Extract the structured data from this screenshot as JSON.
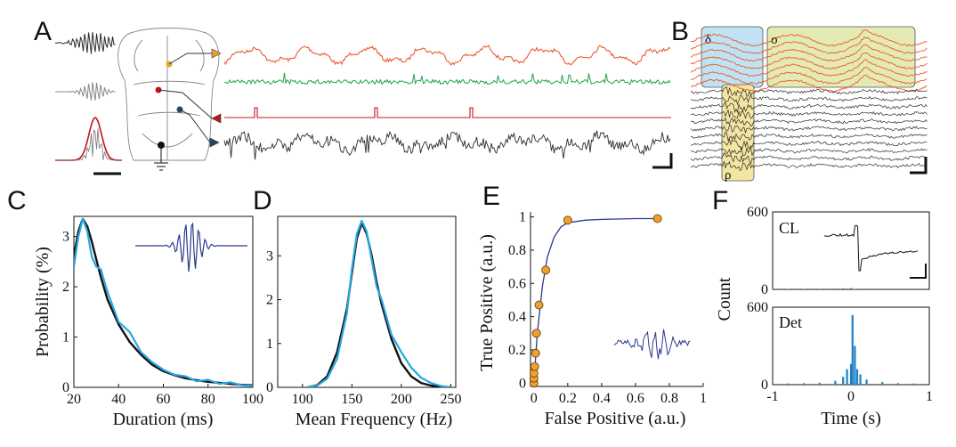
{
  "figure": {
    "panels": [
      "A",
      "B",
      "C",
      "D",
      "E",
      "F"
    ]
  },
  "colors": {
    "orange": "#ee5a2c",
    "green": "#1fa54a",
    "red": "#c0151b",
    "dark": "#2b2b2b",
    "blue_light": "#2aa7e0",
    "navy": "#2b3a8f",
    "marker": "#f0a030",
    "delta_box": "#bfe3f5",
    "sigma_box": "#e3eab4",
    "rho_box": "#f3e6a2",
    "hist": "#1f7fc4"
  },
  "panel_B": {
    "boxes": [
      "δ",
      "σ",
      "ρ"
    ]
  },
  "chart_data": [
    {
      "panel": "C",
      "type": "line",
      "xlabel": "Duration (ms)",
      "ylabel": "Probability (%)",
      "xlim": [
        20,
        100
      ],
      "ylim": [
        0,
        3.4
      ],
      "xticks": [
        "20",
        "40",
        "60",
        "80",
        "100"
      ],
      "yticks": [
        "0",
        "1",
        "2",
        "3"
      ],
      "series": [
        {
          "name": "black",
          "x": [
            20,
            22,
            24,
            26,
            28,
            30,
            32,
            35,
            40,
            45,
            50,
            55,
            60,
            65,
            70,
            75,
            80,
            85,
            90,
            95,
            100
          ],
          "values": [
            2.6,
            3.1,
            3.35,
            3.2,
            2.9,
            2.55,
            2.2,
            1.75,
            1.25,
            0.9,
            0.65,
            0.45,
            0.32,
            0.24,
            0.18,
            0.14,
            0.11,
            0.09,
            0.07,
            0.05,
            0.04
          ]
        },
        {
          "name": "blue",
          "x": [
            20,
            22,
            24,
            26,
            28,
            30,
            32,
            35,
            40,
            45,
            50,
            55,
            60,
            65,
            70,
            75,
            80,
            85,
            90,
            95,
            100
          ],
          "values": [
            2.4,
            3.0,
            3.35,
            3.1,
            2.6,
            2.4,
            2.35,
            1.9,
            1.3,
            1.1,
            0.7,
            0.5,
            0.35,
            0.25,
            0.22,
            0.12,
            0.15,
            0.07,
            0.1,
            0.04,
            0.03
          ]
        }
      ]
    },
    {
      "panel": "D",
      "type": "line",
      "xlabel": "Mean Frequency (Hz)",
      "ylabel": "",
      "xlim": [
        75,
        255
      ],
      "ylim": [
        0,
        3.9
      ],
      "xticks": [
        "100",
        "150",
        "200",
        "250"
      ],
      "yticks": [
        "0",
        "1",
        "2",
        "3"
      ],
      "series": [
        {
          "name": "black",
          "x": [
            105,
            115,
            125,
            135,
            145,
            150,
            155,
            160,
            165,
            170,
            175,
            180,
            190,
            200,
            210,
            220,
            230,
            240,
            250
          ],
          "values": [
            0,
            0.05,
            0.25,
            0.8,
            1.8,
            2.6,
            3.4,
            3.75,
            3.5,
            3.0,
            2.4,
            1.9,
            1.1,
            0.55,
            0.25,
            0.1,
            0.04,
            0.01,
            0
          ]
        },
        {
          "name": "blue",
          "x": [
            105,
            115,
            125,
            135,
            145,
            150,
            155,
            160,
            165,
            170,
            175,
            180,
            190,
            200,
            210,
            220,
            230,
            240,
            250
          ],
          "values": [
            0,
            0.04,
            0.2,
            0.65,
            1.7,
            2.7,
            3.5,
            3.8,
            3.55,
            2.9,
            2.3,
            2.0,
            1.2,
            0.8,
            0.45,
            0.22,
            0.1,
            0.03,
            0
          ]
        }
      ]
    },
    {
      "panel": "E",
      "type": "scatter",
      "xlabel": "False Positive (a.u.)",
      "ylabel": "True Positive (a.u.)",
      "xlim": [
        -0.02,
        1.0
      ],
      "ylim": [
        -0.02,
        1.03
      ],
      "xticks": [
        "0",
        "0.2",
        "0.4",
        "0.6",
        "0.8",
        "1"
      ],
      "yticks": [
        "0",
        "0.2",
        "0.4",
        "0.6",
        "0.8",
        "1"
      ],
      "points": [
        {
          "x": 0.0,
          "y": 0.0
        },
        {
          "x": 0.0,
          "y": 0.03
        },
        {
          "x": 0.0,
          "y": 0.06
        },
        {
          "x": 0.005,
          "y": 0.1
        },
        {
          "x": 0.01,
          "y": 0.18
        },
        {
          "x": 0.015,
          "y": 0.3
        },
        {
          "x": 0.03,
          "y": 0.47
        },
        {
          "x": 0.07,
          "y": 0.68
        },
        {
          "x": 0.2,
          "y": 0.98
        },
        {
          "x": 0.73,
          "y": 0.99
        }
      ],
      "fit": {
        "x": [
          0,
          0.02,
          0.05,
          0.08,
          0.12,
          0.16,
          0.2,
          0.3,
          0.4,
          0.6,
          0.73
        ],
        "values": [
          0,
          0.3,
          0.58,
          0.76,
          0.88,
          0.94,
          0.965,
          0.98,
          0.985,
          0.99,
          0.99
        ]
      }
    },
    {
      "panel": "F",
      "type": "bar",
      "xlabel": "Time (s)",
      "ylabel": "Count",
      "xlim": [
        -1,
        1
      ],
      "subplots": [
        {
          "label": "CL",
          "ylim": [
            0,
            600
          ],
          "yticks": [
            "0",
            "600"
          ],
          "x": [
            -1,
            -0.8,
            -0.6,
            -0.4,
            -0.2,
            -0.1,
            0,
            0.05,
            0.1,
            0.3,
            0.5,
            0.7,
            0.9
          ],
          "values": [
            5,
            3,
            4,
            2,
            6,
            8,
            10,
            3,
            2,
            1,
            1,
            1,
            1
          ]
        },
        {
          "label": "Det",
          "ylim": [
            0,
            600
          ],
          "yticks": [
            "0",
            "600"
          ],
          "xticks": [
            "-1",
            "0",
            "1"
          ],
          "x": [
            -1,
            -0.8,
            -0.6,
            -0.4,
            -0.2,
            -0.1,
            -0.05,
            0,
            0.02,
            0.05,
            0.08,
            0.12,
            0.2,
            0.4,
            0.6,
            0.8,
            1
          ],
          "values": [
            8,
            10,
            12,
            15,
            30,
            60,
            120,
            160,
            540,
            300,
            120,
            80,
            40,
            20,
            12,
            9,
            7
          ]
        }
      ]
    }
  ]
}
